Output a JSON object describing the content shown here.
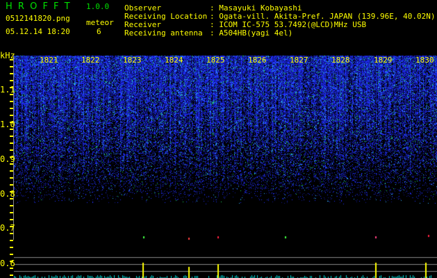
{
  "app": {
    "title": "H R O F F T",
    "version": "1.0.0"
  },
  "file": {
    "name": "0512141820.png",
    "datetime": "05.12.14 18:20"
  },
  "meteor": {
    "label": "meteor",
    "count": "6"
  },
  "info": [
    {
      "label": "Observer",
      "value": ": Masayuki Kobayashi"
    },
    {
      "label": "Receiving Location",
      "value": ": Ogata-vill. Akita-Pref. JAPAN (139.96E, 40.02N)"
    },
    {
      "label": "Receiver",
      "value": ": ICOM IC-575 53.7492(@LCD)MHz USB"
    },
    {
      "label": "Receiving antenna",
      "value": ": A504HB(yagi 4el)"
    }
  ],
  "axis": {
    "unit": "kHz",
    "y_labels": [
      "1.1",
      "1.0",
      "0.9",
      "0.8",
      "0.7",
      "0.6"
    ],
    "time_labels": [
      "1821",
      "1822",
      "1823",
      "1824",
      "1825",
      "1826",
      "1827",
      "1828",
      "1829",
      "1830"
    ]
  },
  "colors": {
    "text": "#ffff00",
    "title": "#00e000",
    "noise": "#2030ff",
    "level": "#00e0e0",
    "spike": "#ffff00"
  }
}
